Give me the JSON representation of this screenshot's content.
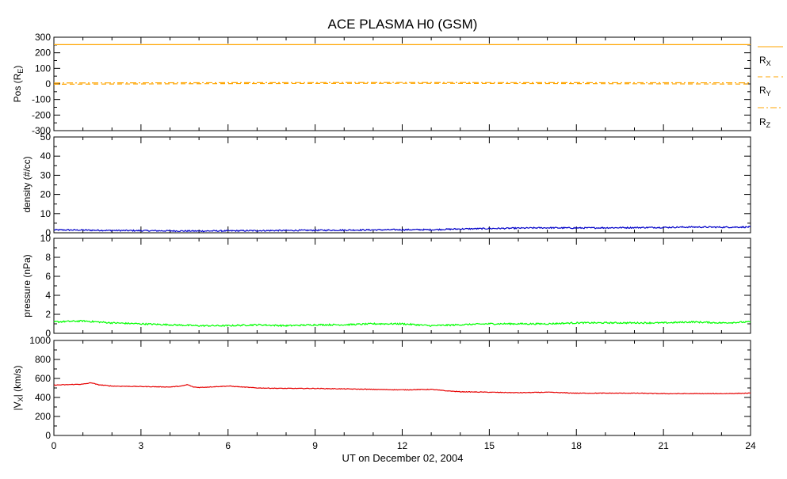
{
  "title": "ACE PLASMA H0 (GSM)",
  "xlabel": "UT on December 02, 2004",
  "x_ticks": [
    "0",
    "3",
    "6",
    "9",
    "12",
    "15",
    "18",
    "21",
    "24"
  ],
  "legend": {
    "rx": "R",
    "rx_sub": "X",
    "ry": "R",
    "ry_sub": "Y",
    "rz": "R",
    "rz_sub": "Z"
  },
  "colors": {
    "position": "#ffa500",
    "density": "#0000c8",
    "pressure": "#00ff00",
    "velocity": "#e60000"
  },
  "chart_data": [
    {
      "type": "line",
      "panel": "position",
      "ylabel": "Pos (R",
      "ylabel_sub": "E",
      "ylabel_end": ")",
      "ylim": [
        -300,
        300
      ],
      "xlim": [
        0,
        24
      ],
      "y_ticks": [
        "300",
        "200",
        "100",
        "0",
        "-100",
        "-200",
        "-300"
      ],
      "series": [
        {
          "name": "RX",
          "style": "solid",
          "x": [
            0,
            24
          ],
          "values": [
            252,
            252
          ]
        },
        {
          "name": "RY",
          "style": "dashed",
          "x": [
            0,
            6,
            12,
            18,
            24
          ],
          "values": [
            -2,
            2,
            4,
            2,
            -1
          ]
        },
        {
          "name": "RZ",
          "style": "dashdot",
          "x": [
            0,
            6,
            12,
            18,
            24
          ],
          "values": [
            6,
            8,
            9,
            8,
            7
          ]
        }
      ]
    },
    {
      "type": "line",
      "panel": "density",
      "ylabel": "density (#/cc)",
      "ylim": [
        0,
        50
      ],
      "xlim": [
        0,
        24
      ],
      "y_ticks": [
        "50",
        "40",
        "30",
        "20",
        "10",
        "0"
      ],
      "series": [
        {
          "x": [
            0,
            1,
            2,
            3,
            4,
            5,
            6,
            7,
            8,
            9,
            10,
            11,
            12,
            13,
            14,
            15,
            16,
            17,
            18,
            19,
            20,
            21,
            22,
            23,
            24
          ],
          "values": [
            1.5,
            1.4,
            1.2,
            1.1,
            1.0,
            0.9,
            1.0,
            1.1,
            1.2,
            1.3,
            1.4,
            1.5,
            1.6,
            1.6,
            2.0,
            2.2,
            2.4,
            2.6,
            2.5,
            2.6,
            2.7,
            2.8,
            3.0,
            2.9,
            3.0
          ]
        }
      ]
    },
    {
      "type": "line",
      "panel": "pressure",
      "ylabel": "pressure (nPa)",
      "ylim": [
        0,
        10
      ],
      "xlim": [
        0,
        24
      ],
      "y_ticks": [
        "10",
        "8",
        "6",
        "4",
        "2",
        "0"
      ],
      "series": [
        {
          "x": [
            0,
            1,
            2,
            3,
            4,
            5,
            6,
            7,
            8,
            9,
            10,
            11,
            12,
            13,
            14,
            15,
            16,
            17,
            18,
            19,
            20,
            21,
            22,
            23,
            24
          ],
          "values": [
            1.2,
            1.3,
            1.1,
            1.0,
            0.9,
            0.8,
            0.8,
            0.9,
            0.8,
            0.9,
            0.9,
            1.0,
            1.0,
            0.8,
            0.9,
            1.0,
            1.0,
            1.0,
            1.1,
            1.1,
            1.1,
            1.1,
            1.2,
            1.1,
            1.2
          ]
        }
      ]
    },
    {
      "type": "line",
      "panel": "velocity",
      "ylabel": "|V",
      "ylabel_sub": "X",
      "ylabel_end": "| (km/s)",
      "ylim": [
        0,
        1000
      ],
      "xlim": [
        0,
        24
      ],
      "y_ticks": [
        "1000",
        "800",
        "600",
        "400",
        "200",
        "0"
      ],
      "series": [
        {
          "x": [
            0,
            0.5,
            1,
            1.3,
            1.5,
            2,
            3,
            4,
            4.4,
            4.6,
            4.8,
            5,
            6,
            6.5,
            7,
            8,
            9,
            10,
            11,
            12,
            13,
            13.5,
            14,
            15,
            16,
            17,
            18,
            19,
            20,
            21,
            22,
            23,
            24
          ],
          "values": [
            530,
            535,
            540,
            555,
            535,
            520,
            515,
            510,
            520,
            535,
            510,
            505,
            520,
            510,
            500,
            495,
            495,
            490,
            485,
            480,
            485,
            470,
            460,
            455,
            450,
            455,
            445,
            445,
            445,
            440,
            440,
            440,
            445
          ]
        }
      ]
    }
  ]
}
